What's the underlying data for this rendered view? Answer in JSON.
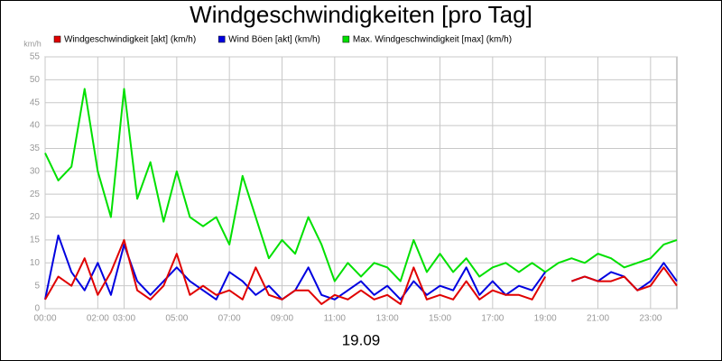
{
  "chart_data": {
    "type": "line",
    "title": "Windgeschwindigkeiten [pro Tag]",
    "x_label": "19.09",
    "y_label": "km/h",
    "x": [
      0,
      0.5,
      1,
      1.5,
      2,
      2.5,
      3,
      3.5,
      4,
      4.5,
      5,
      5.5,
      6,
      6.5,
      7,
      7.5,
      8,
      8.5,
      9,
      9.5,
      10,
      10.5,
      11,
      11.5,
      12,
      12.5,
      13,
      13.5,
      14,
      14.5,
      15,
      15.5,
      16,
      16.5,
      17,
      17.5,
      18,
      18.5,
      19,
      19.5,
      20,
      20.5,
      21,
      21.5,
      22,
      22.5,
      23,
      23.5,
      24
    ],
    "series": [
      {
        "name": "Windgeschwindigkeit [akt] (km/h)",
        "color": "#e00000",
        "values": [
          2,
          7,
          5,
          11,
          3,
          8,
          15,
          4,
          2,
          5,
          12,
          3,
          5,
          3,
          4,
          2,
          9,
          3,
          2,
          4,
          4,
          1,
          3,
          2,
          4,
          2,
          3,
          1,
          9,
          2,
          3,
          2,
          6,
          2,
          4,
          3,
          3,
          2,
          7,
          null,
          6,
          7,
          6,
          6,
          7,
          4,
          5,
          9,
          5
        ]
      },
      {
        "name": "Wind Böen [akt] (km/h)",
        "color": "#0000e0",
        "values": [
          2,
          16,
          8,
          4,
          10,
          3,
          14,
          6,
          3,
          6,
          9,
          6,
          4,
          2,
          8,
          6,
          3,
          5,
          2,
          4,
          9,
          3,
          2,
          4,
          6,
          3,
          5,
          2,
          6,
          3,
          5,
          4,
          9,
          3,
          6,
          3,
          5,
          4,
          8,
          null,
          6,
          7,
          6,
          8,
          7,
          4,
          6,
          10,
          6
        ]
      },
      {
        "name": "Max. Windgeschwindigkeit [max] (km/h)",
        "color": "#00e000",
        "values": [
          34,
          28,
          31,
          48,
          30,
          20,
          48,
          24,
          32,
          19,
          30,
          20,
          18,
          20,
          14,
          29,
          20,
          11,
          15,
          12,
          20,
          14,
          6,
          10,
          7,
          10,
          9,
          6,
          15,
          8,
          12,
          8,
          11,
          7,
          9,
          10,
          8,
          10,
          8,
          10,
          11,
          10,
          12,
          11,
          9,
          10,
          11,
          14,
          15
        ]
      }
    ],
    "xlim": [
      0,
      24
    ],
    "xticks": [
      {
        "value": 0,
        "label": "00:00"
      },
      {
        "value": 2,
        "label": "02:00"
      },
      {
        "value": 3,
        "label": "03:00"
      },
      {
        "value": 5,
        "label": "05:00"
      },
      {
        "value": 7,
        "label": "07:00"
      },
      {
        "value": 9,
        "label": "09:00"
      },
      {
        "value": 11,
        "label": "11:00"
      },
      {
        "value": 13,
        "label": "13:00"
      },
      {
        "value": 15,
        "label": "15:00"
      },
      {
        "value": 17,
        "label": "17:00"
      },
      {
        "value": 19,
        "label": "19:00"
      },
      {
        "value": 21,
        "label": "21:00"
      },
      {
        "value": 23,
        "label": "23:00"
      }
    ],
    "ylim": [
      0,
      55
    ],
    "yticks": [
      0,
      5,
      10,
      15,
      20,
      25,
      30,
      35,
      40,
      45,
      50,
      55
    ],
    "grid": true
  }
}
